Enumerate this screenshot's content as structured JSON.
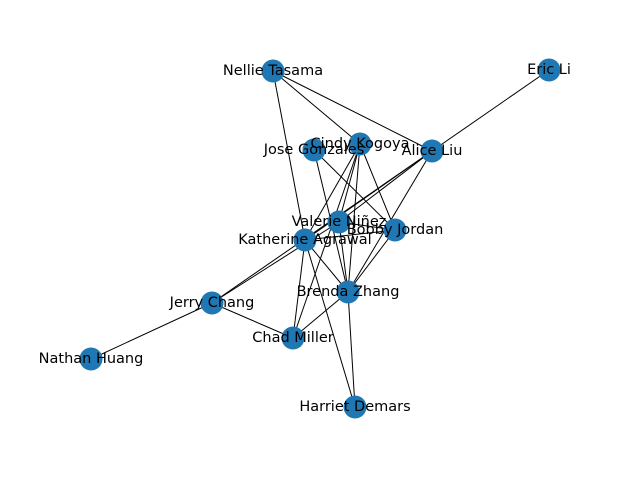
{
  "graph": {
    "node_color": "#1f77b4",
    "edge_color": "#000000",
    "nodes": [
      {
        "id": "nellie",
        "label": "Nellie Tasama"
      },
      {
        "id": "eric",
        "label": "Eric Li"
      },
      {
        "id": "cindy",
        "label": "Cindy Kogoya"
      },
      {
        "id": "jose",
        "label": "Jose Gonzales"
      },
      {
        "id": "alice",
        "label": "Alice Liu"
      },
      {
        "id": "valerie",
        "label": "Valerie Niñez"
      },
      {
        "id": "bobby",
        "label": "Bobby Jordan"
      },
      {
        "id": "katherine",
        "label": "Katherine Agrawal"
      },
      {
        "id": "brenda",
        "label": "Brenda Zhang"
      },
      {
        "id": "jerry",
        "label": "Jerry Chang"
      },
      {
        "id": "chad",
        "label": "Chad Miller"
      },
      {
        "id": "nathan",
        "label": "Nathan Huang"
      },
      {
        "id": "harriet",
        "label": "Harriet Demars"
      }
    ],
    "edges": [
      [
        "nellie",
        "cindy"
      ],
      [
        "nellie",
        "katherine"
      ],
      [
        "nellie",
        "alice"
      ],
      [
        "eric",
        "alice"
      ],
      [
        "cindy",
        "valerie"
      ],
      [
        "cindy",
        "katherine"
      ],
      [
        "cindy",
        "bobby"
      ],
      [
        "cindy",
        "brenda"
      ],
      [
        "cindy",
        "chad"
      ],
      [
        "jose",
        "bobby"
      ],
      [
        "jose",
        "brenda"
      ],
      [
        "alice",
        "valerie"
      ],
      [
        "alice",
        "katherine"
      ],
      [
        "alice",
        "brenda"
      ],
      [
        "alice",
        "jerry"
      ],
      [
        "valerie",
        "bobby"
      ],
      [
        "valerie",
        "brenda"
      ],
      [
        "valerie",
        "jerry"
      ],
      [
        "katherine",
        "brenda"
      ],
      [
        "katherine",
        "chad"
      ],
      [
        "katherine",
        "harriet"
      ],
      [
        "katherine",
        "bobby"
      ],
      [
        "bobby",
        "brenda"
      ],
      [
        "brenda",
        "chad"
      ],
      [
        "brenda",
        "harriet"
      ],
      [
        "jerry",
        "chad"
      ],
      [
        "jerry",
        "nathan"
      ]
    ]
  }
}
